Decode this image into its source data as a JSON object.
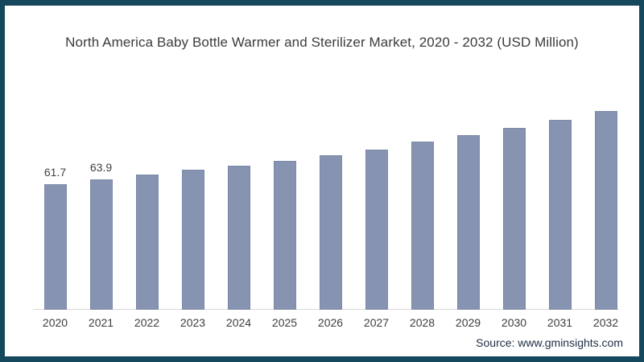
{
  "chart_data": {
    "type": "bar",
    "title": "North America Baby Bottle Warmer and Sterilizer Market, 2020 - 2032 (USD Million)",
    "categories": [
      "2020",
      "2021",
      "2022",
      "2023",
      "2024",
      "2025",
      "2026",
      "2027",
      "2028",
      "2029",
      "2030",
      "2031",
      "2032"
    ],
    "values": [
      61.7,
      63.9,
      66.4,
      68.7,
      70.9,
      73.3,
      75.8,
      78.7,
      82.6,
      85.8,
      89.4,
      93.3,
      97.6
    ],
    "visible_value_labels": [
      "61.7",
      "63.9",
      "",
      "",
      "",
      "",
      "",
      "",
      "",
      "",
      "",
      "",
      ""
    ],
    "xlabel": "",
    "ylabel": "",
    "ylim": [
      0,
      110
    ],
    "grid": false,
    "legend": false,
    "bar_color": "#8693b1"
  },
  "source": {
    "text": "Source: www.gminsights.com"
  },
  "colors": {
    "frame_border": "#15485c",
    "bar_fill": "#8693b1",
    "bar_edge": "#7b89a7",
    "axis_line": "#d9d9d9",
    "title_text": "#3b3b3b",
    "tick_text": "#3d3d3d",
    "source_text": "#203147"
  }
}
